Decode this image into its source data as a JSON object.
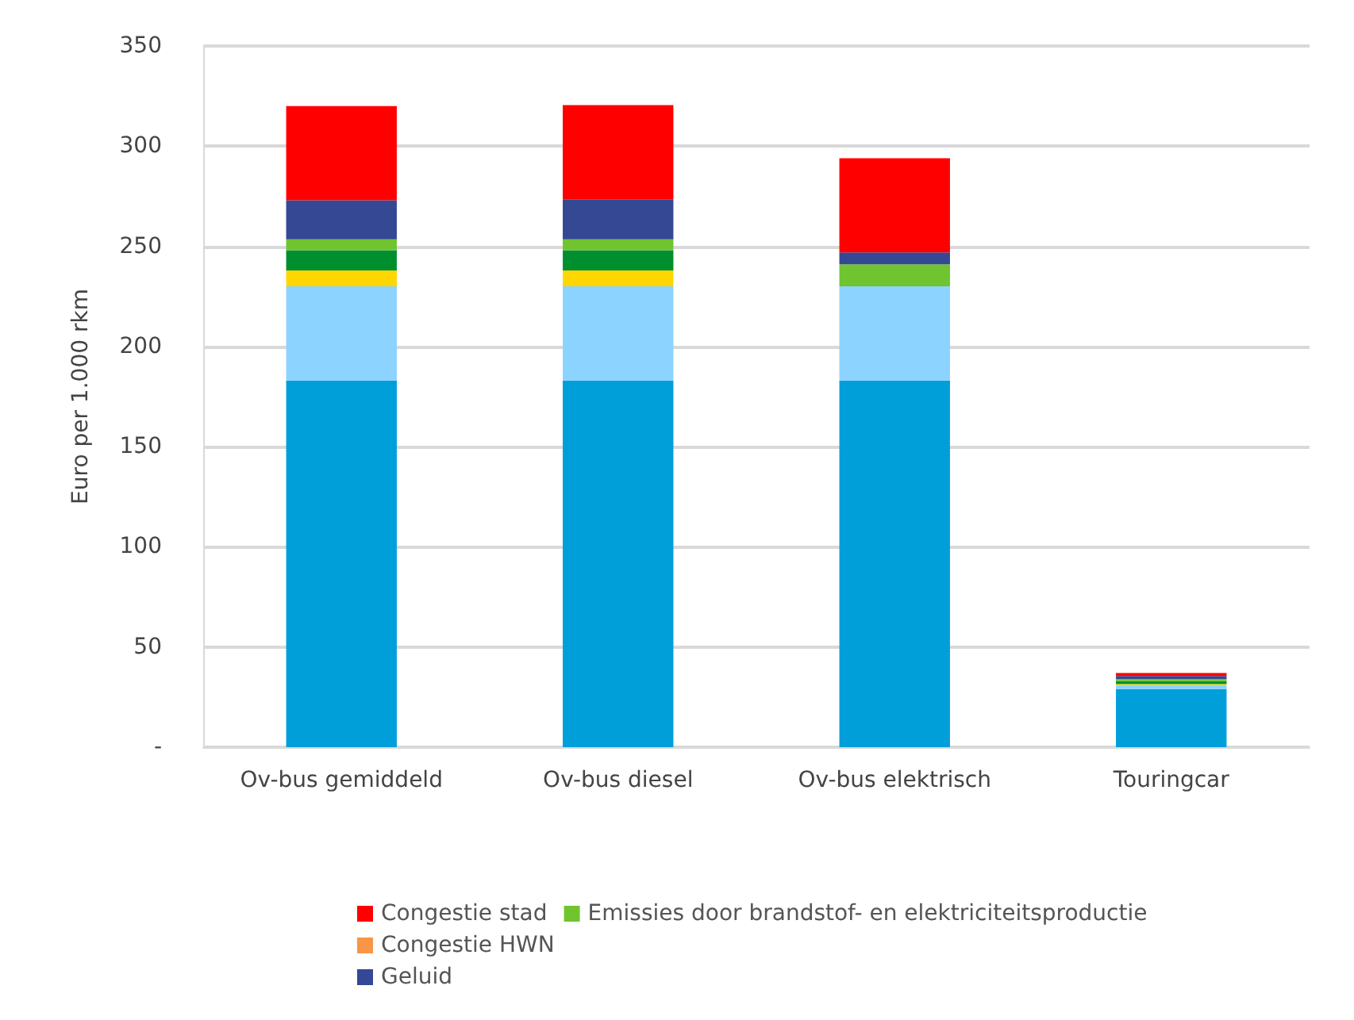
{
  "chart_data": {
    "type": "bar",
    "stacked": true,
    "ylabel": "Euro per 1.000 rkm",
    "categories": [
      "Ov-bus gemiddeld",
      "Ov-bus diesel",
      "Ov-bus elektrisch",
      "Touringcar"
    ],
    "series": [
      {
        "color": "#009fda",
        "values": [
          183,
          183,
          183,
          29
        ]
      },
      {
        "color": "#8dd3ff",
        "values": [
          47,
          47,
          47,
          2
        ]
      },
      {
        "color": "#ffd700",
        "values": [
          8,
          8,
          0,
          0.5
        ]
      },
      {
        "color": "#008f2f",
        "values": [
          10,
          10,
          0,
          1.5
        ]
      },
      {
        "name": "Emissies door brandstof- en elektriciteitsproductie",
        "color": "#70c42f",
        "values": [
          5.5,
          5.5,
          11,
          1
        ]
      },
      {
        "name": "Geluid",
        "color": "#344893",
        "values": [
          19.5,
          20,
          6,
          1.5
        ]
      },
      {
        "name": "Congestie HWN",
        "color": "#f79646",
        "values": [
          0,
          0,
          0,
          0
        ]
      },
      {
        "name": "Congestie stad",
        "color": "#ff0000",
        "values": [
          47,
          47,
          47,
          1.5
        ]
      }
    ],
    "ylim": [
      0,
      350
    ],
    "yticks": [
      {
        "value": 0,
        "label": "-"
      },
      50,
      100,
      150,
      200,
      250,
      300,
      350
    ],
    "grid": "y",
    "legend": "bottom left"
  }
}
